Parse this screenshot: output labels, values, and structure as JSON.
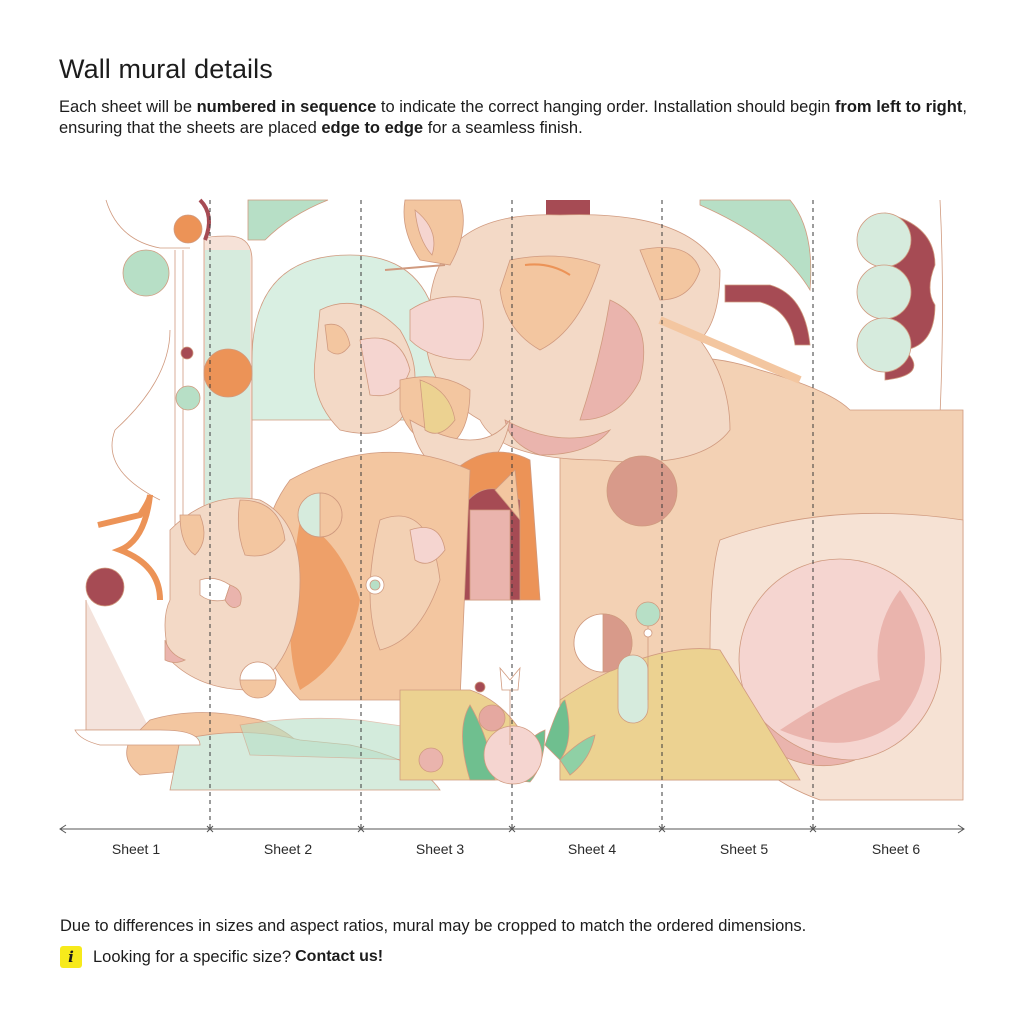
{
  "header": {
    "title": "Wall mural details"
  },
  "intro": {
    "part1": "Each sheet will be ",
    "bold1": "numbered in sequence",
    "part2": " to indicate the correct hanging order. Installation should begin ",
    "bold2": "from left to right",
    "part3": ", ensuring that the sheets are placed ",
    "bold3": "edge to edge",
    "part4": " for a seamless finish."
  },
  "sheets": [
    "Sheet 1",
    "Sheet 2",
    "Sheet 3",
    "Sheet 4",
    "Sheet 5",
    "Sheet 6"
  ],
  "footer": {
    "crop_note": "Due to differences in sizes and aspect ratios, mural may be cropped to match the ordered dimensions.",
    "info_icon": "i",
    "help_text": "Looking for a specific size?",
    "contact_label": "Contact us!"
  },
  "colors": {
    "peach": "#f3c6a0",
    "cream": "#f6e2d4",
    "orange": "#ec9357",
    "maroon": "#a64b54",
    "mint": "#b7dfc6",
    "pink": "#eab4ad",
    "mustard": "#ecd291",
    "accent_yellow": "#f7ea1b"
  }
}
